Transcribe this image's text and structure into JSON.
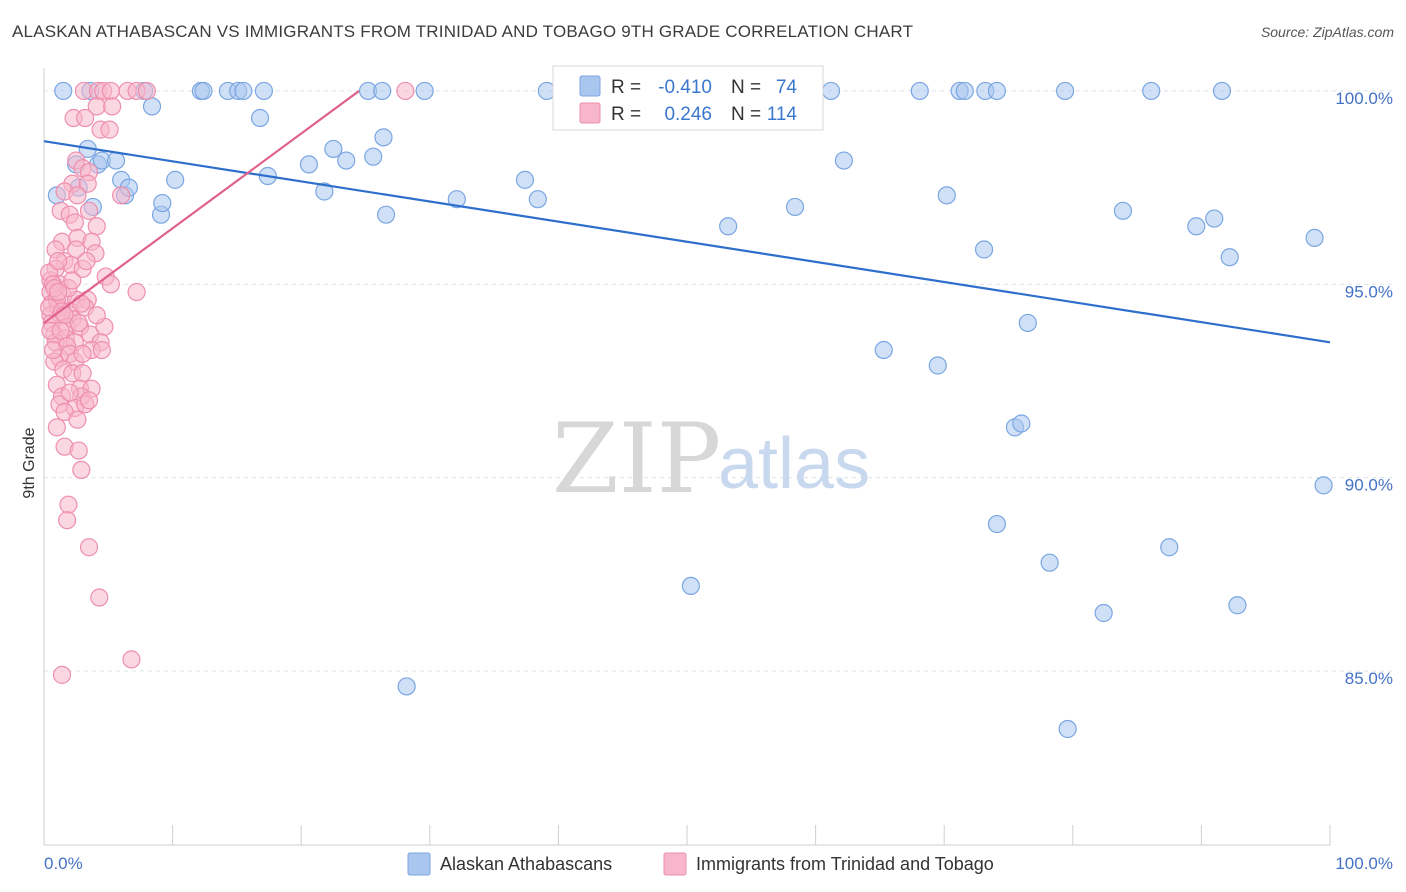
{
  "header": {
    "title": "ALASKAN ATHABASCAN VS IMMIGRANTS FROM TRINIDAD AND TOBAGO 9TH GRADE CORRELATION CHART",
    "source": "Source: ZipAtlas.com"
  },
  "watermark": {
    "zip": "ZIP",
    "atlas": "atlas"
  },
  "legend": {
    "r_label": "R =",
    "n_label": "N =",
    "series1": {
      "r": "-0.410",
      "n": "74"
    },
    "series2": {
      "r": "0.246",
      "n": "114"
    }
  },
  "bottom_legend": {
    "series1": "Alaskan Athabascans",
    "series2": "Immigrants from Trinidad and Tobago"
  },
  "chart_data": {
    "type": "scatter",
    "title": "ALASKAN ATHABASCAN VS IMMIGRANTS FROM TRINIDAD AND TOBAGO 9TH GRADE CORRELATION CHART",
    "xlabel": "",
    "ylabel": "9th Grade",
    "xlim": [
      0,
      100
    ],
    "ylim": [
      80.5,
      100.8
    ],
    "x_tick_labels": [
      "0.0%",
      "100.0%"
    ],
    "y_ticks": [
      {
        "value": 100,
        "label": "100.0%"
      },
      {
        "value": 95,
        "label": "95.0%"
      },
      {
        "value": 90,
        "label": "90.0%"
      },
      {
        "value": 85,
        "label": "85.0%"
      }
    ],
    "colors": {
      "series1_fill": "#a9c6ee",
      "series1_stroke": "#7aa6e2",
      "series1_line": "#2f6fcc",
      "series2_fill": "#f7b6cb",
      "series2_stroke": "#ee8fae",
      "series2_line": "#e0628c",
      "grid": "#dde3ea",
      "tick": "#4472c4"
    },
    "series": [
      {
        "name": "Alaskan Athabascans",
        "trend": {
          "x": [
            0,
            100
          ],
          "y": [
            98.7,
            93.5
          ]
        },
        "points": [
          [
            2.5,
            98.1
          ],
          [
            3.4,
            98.5
          ],
          [
            4.2,
            98.1
          ],
          [
            4.5,
            98.2
          ],
          [
            5.6,
            98.2
          ],
          [
            1.0,
            97.3
          ],
          [
            2.7,
            97.5
          ],
          [
            6.0,
            97.7
          ],
          [
            6.3,
            97.3
          ],
          [
            6.6,
            97.5
          ],
          [
            3.8,
            97.0
          ],
          [
            9.1,
            96.8
          ],
          [
            9.2,
            97.1
          ],
          [
            10.2,
            97.7
          ],
          [
            1.5,
            100.0
          ],
          [
            3.6,
            100.0
          ],
          [
            7.8,
            100.0
          ],
          [
            8.4,
            99.6
          ],
          [
            12.2,
            100.0
          ],
          [
            12.4,
            100.0
          ],
          [
            14.3,
            100.0
          ],
          [
            15.1,
            100.0
          ],
          [
            15.5,
            100.0
          ],
          [
            17.1,
            100.0
          ],
          [
            25.2,
            100.0
          ],
          [
            26.3,
            100.0
          ],
          [
            29.6,
            100.0
          ],
          [
            39.1,
            100.0
          ],
          [
            41.0,
            100.0
          ],
          [
            61.2,
            100.0
          ],
          [
            68.1,
            100.0
          ],
          [
            71.2,
            100.0
          ],
          [
            71.6,
            100.0
          ],
          [
            73.2,
            100.0
          ],
          [
            74.1,
            100.0
          ],
          [
            79.4,
            100.0
          ],
          [
            86.1,
            100.0
          ],
          [
            91.6,
            100.0
          ],
          [
            16.8,
            99.3
          ],
          [
            17.4,
            97.8
          ],
          [
            20.6,
            98.1
          ],
          [
            21.8,
            97.4
          ],
          [
            22.5,
            98.5
          ],
          [
            23.5,
            98.2
          ],
          [
            25.6,
            98.3
          ],
          [
            26.6,
            96.8
          ],
          [
            32.1,
            97.2
          ],
          [
            37.4,
            97.7
          ],
          [
            38.4,
            97.2
          ],
          [
            53.2,
            96.5
          ],
          [
            58.4,
            97.0
          ],
          [
            62.2,
            98.2
          ],
          [
            70.2,
            97.3
          ],
          [
            73.1,
            95.9
          ],
          [
            83.9,
            96.9
          ],
          [
            89.6,
            96.5
          ],
          [
            91.0,
            96.7
          ],
          [
            92.2,
            95.7
          ],
          [
            98.8,
            96.2
          ],
          [
            76.5,
            94.0
          ],
          [
            65.3,
            93.3
          ],
          [
            69.5,
            92.9
          ],
          [
            75.5,
            91.3
          ],
          [
            76.0,
            91.4
          ],
          [
            99.5,
            89.8
          ],
          [
            74.1,
            88.8
          ],
          [
            87.5,
            88.2
          ],
          [
            78.2,
            87.8
          ],
          [
            50.3,
            87.2
          ],
          [
            92.8,
            86.7
          ],
          [
            82.4,
            86.5
          ],
          [
            28.2,
            84.6
          ],
          [
            79.6,
            83.5
          ],
          [
            26.4,
            98.8
          ]
        ]
      },
      {
        "name": "Immigrants from Trinidad and Tobago",
        "trend": {
          "x": [
            0,
            24.5
          ],
          "y": [
            94.0,
            100.0
          ]
        },
        "points": [
          [
            3.1,
            100.0
          ],
          [
            4.2,
            100.0
          ],
          [
            4.6,
            100.0
          ],
          [
            5.2,
            100.0
          ],
          [
            6.5,
            100.0
          ],
          [
            7.2,
            100.0
          ],
          [
            8.0,
            100.0
          ],
          [
            28.1,
            100.0
          ],
          [
            4.1,
            99.6
          ],
          [
            5.3,
            99.6
          ],
          [
            2.3,
            99.3
          ],
          [
            3.2,
            99.3
          ],
          [
            4.4,
            99.0
          ],
          [
            5.1,
            99.0
          ],
          [
            2.5,
            98.2
          ],
          [
            3.0,
            98.0
          ],
          [
            3.5,
            97.9
          ],
          [
            2.2,
            97.6
          ],
          [
            3.4,
            97.6
          ],
          [
            1.6,
            97.4
          ],
          [
            2.6,
            97.3
          ],
          [
            6.0,
            97.3
          ],
          [
            1.3,
            96.9
          ],
          [
            2.0,
            96.8
          ],
          [
            3.5,
            96.9
          ],
          [
            2.4,
            96.6
          ],
          [
            4.1,
            96.5
          ],
          [
            1.4,
            96.1
          ],
          [
            2.6,
            96.2
          ],
          [
            3.7,
            96.1
          ],
          [
            0.9,
            95.9
          ],
          [
            2.5,
            95.9
          ],
          [
            4.0,
            95.8
          ],
          [
            1.6,
            95.6
          ],
          [
            2.1,
            95.5
          ],
          [
            0.9,
            95.4
          ],
          [
            3.0,
            95.4
          ],
          [
            4.8,
            95.2
          ],
          [
            0.5,
            95.1
          ],
          [
            1.2,
            95.0
          ],
          [
            5.2,
            95.0
          ],
          [
            7.2,
            94.8
          ],
          [
            0.5,
            94.8
          ],
          [
            1.5,
            94.7
          ],
          [
            2.5,
            94.6
          ],
          [
            3.4,
            94.6
          ],
          [
            0.6,
            94.5
          ],
          [
            1.1,
            94.4
          ],
          [
            2.0,
            94.3
          ],
          [
            3.2,
            94.4
          ],
          [
            0.5,
            94.2
          ],
          [
            1.3,
            94.2
          ],
          [
            2.2,
            94.1
          ],
          [
            0.6,
            94.0
          ],
          [
            1.8,
            93.9
          ],
          [
            2.8,
            93.9
          ],
          [
            4.7,
            93.9
          ],
          [
            0.8,
            93.7
          ],
          [
            1.7,
            93.6
          ],
          [
            3.6,
            93.7
          ],
          [
            0.9,
            93.5
          ],
          [
            2.4,
            93.5
          ],
          [
            4.4,
            93.5
          ],
          [
            1.8,
            93.4
          ],
          [
            3.7,
            93.3
          ],
          [
            4.5,
            93.3
          ],
          [
            1.2,
            93.1
          ],
          [
            2.0,
            93.2
          ],
          [
            0.8,
            93.0
          ],
          [
            2.4,
            93.0
          ],
          [
            1.5,
            92.8
          ],
          [
            2.2,
            92.7
          ],
          [
            3.0,
            92.7
          ],
          [
            1.0,
            92.4
          ],
          [
            2.8,
            92.3
          ],
          [
            3.7,
            92.3
          ],
          [
            1.4,
            92.1
          ],
          [
            2.9,
            92.1
          ],
          [
            1.2,
            91.9
          ],
          [
            2.4,
            91.8
          ],
          [
            3.2,
            91.9
          ],
          [
            1.6,
            91.7
          ],
          [
            2.6,
            91.5
          ],
          [
            1.0,
            91.3
          ],
          [
            1.6,
            90.8
          ],
          [
            2.7,
            90.7
          ],
          [
            2.9,
            90.2
          ],
          [
            1.9,
            89.3
          ],
          [
            1.8,
            88.9
          ],
          [
            3.5,
            88.2
          ],
          [
            4.3,
            86.9
          ],
          [
            6.8,
            85.3
          ],
          [
            1.4,
            84.9
          ],
          [
            0.4,
            95.3
          ],
          [
            0.7,
            95.0
          ],
          [
            1.0,
            94.6
          ],
          [
            1.9,
            94.9
          ],
          [
            2.9,
            94.5
          ],
          [
            0.4,
            94.4
          ],
          [
            1.4,
            94.3
          ],
          [
            0.7,
            93.3
          ],
          [
            1.1,
            95.6
          ],
          [
            2.2,
            95.1
          ],
          [
            3.3,
            95.6
          ],
          [
            4.1,
            94.2
          ],
          [
            0.8,
            94.9
          ],
          [
            1.6,
            94.2
          ],
          [
            2.7,
            94.0
          ],
          [
            0.5,
            93.8
          ],
          [
            3.0,
            93.2
          ],
          [
            2.0,
            92.2
          ],
          [
            1.3,
            93.8
          ],
          [
            3.5,
            92.0
          ],
          [
            1.1,
            94.8
          ]
        ]
      }
    ]
  }
}
